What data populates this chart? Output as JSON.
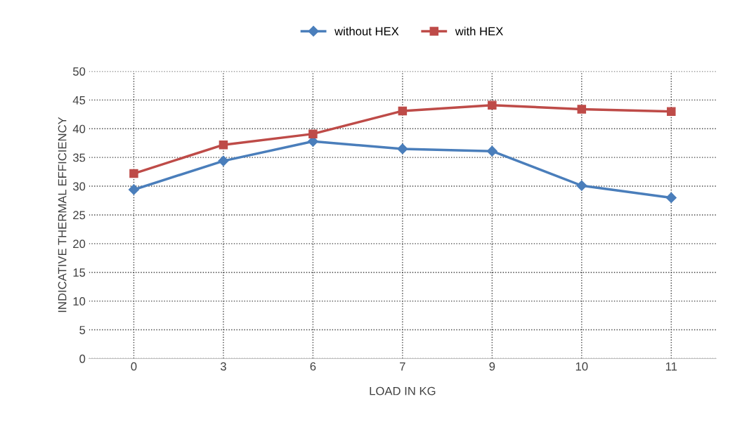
{
  "chart_data": {
    "type": "line",
    "xlabel": "LOAD IN KG",
    "ylabel": "INDICATIVE THERMAL EFFICIENCY",
    "categories": [
      "0",
      "3",
      "6",
      "7",
      "9",
      "10",
      "11"
    ],
    "series": [
      {
        "name": "without HEX",
        "color": "#4a7ebb",
        "marker": "diamond",
        "values": [
          29.4,
          34.4,
          37.8,
          36.5,
          36.1,
          30.1,
          28.0
        ]
      },
      {
        "name": "with HEX",
        "color": "#be4b48",
        "marker": "square",
        "values": [
          32.2,
          37.2,
          39.1,
          43.1,
          44.1,
          43.4,
          43.0
        ]
      }
    ],
    "ylim": [
      0,
      50
    ],
    "yticks": [
      0,
      5,
      10,
      15,
      20,
      25,
      30,
      35,
      40,
      45,
      50
    ],
    "grid": true,
    "legend": "top",
    "line_style": "solid"
  }
}
